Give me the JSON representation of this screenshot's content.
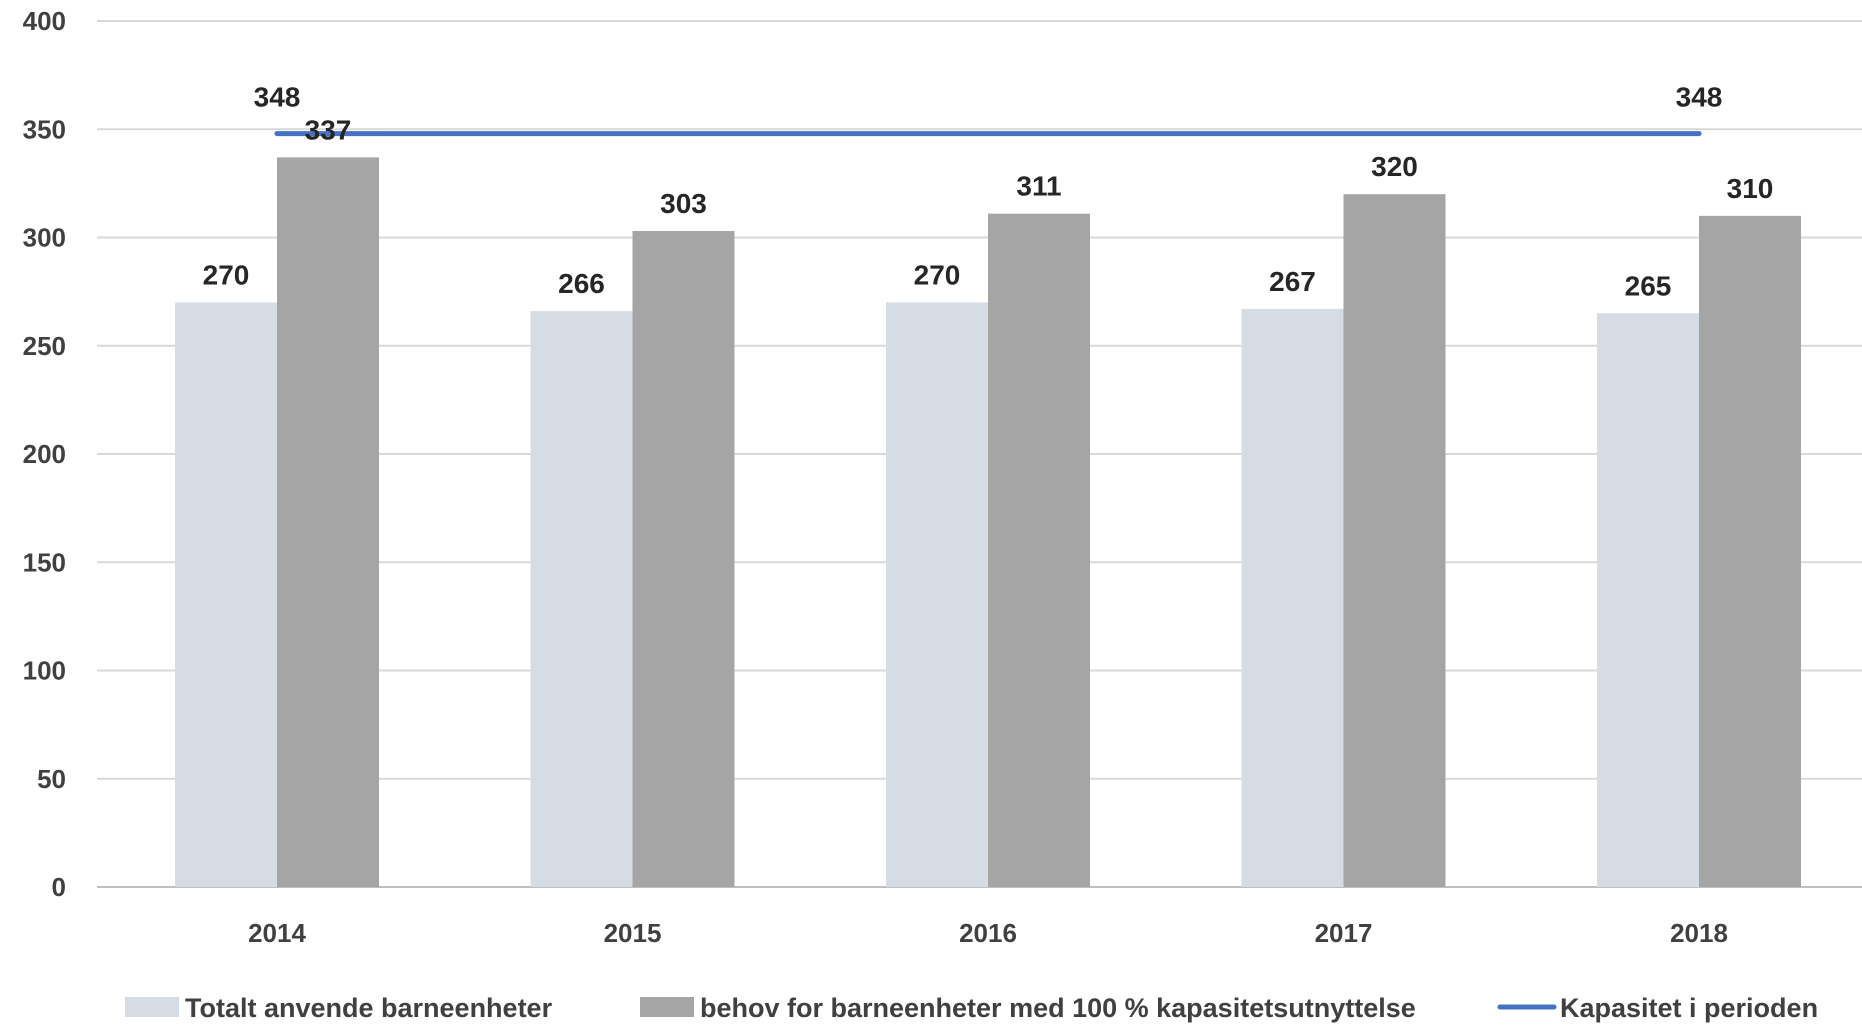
{
  "chart_data": {
    "type": "bar",
    "categories": [
      "2014",
      "2015",
      "2016",
      "2017",
      "2018"
    ],
    "series": [
      {
        "name": "Totalt anvende barneenheter",
        "type": "bar",
        "color": "#d6dce4",
        "values": [
          270,
          266,
          270,
          267,
          265
        ]
      },
      {
        "name": "behov for barneenheter med 100 % kapasitetsutnyttelse",
        "type": "bar",
        "color": "#a5a5a5",
        "values": [
          337,
          303,
          311,
          320,
          310
        ]
      },
      {
        "name": "Kapasitet i perioden",
        "type": "line",
        "color": "#4472c4",
        "values": [
          348,
          348,
          348,
          348,
          348
        ],
        "labeled_points": [
          0,
          4
        ]
      }
    ],
    "ylim": [
      0,
      400
    ],
    "yticks": [
      0,
      50,
      100,
      150,
      200,
      250,
      300,
      350,
      400
    ],
    "grid": true,
    "legend_position": "bottom",
    "title": "",
    "xlabel": "",
    "ylabel": ""
  }
}
